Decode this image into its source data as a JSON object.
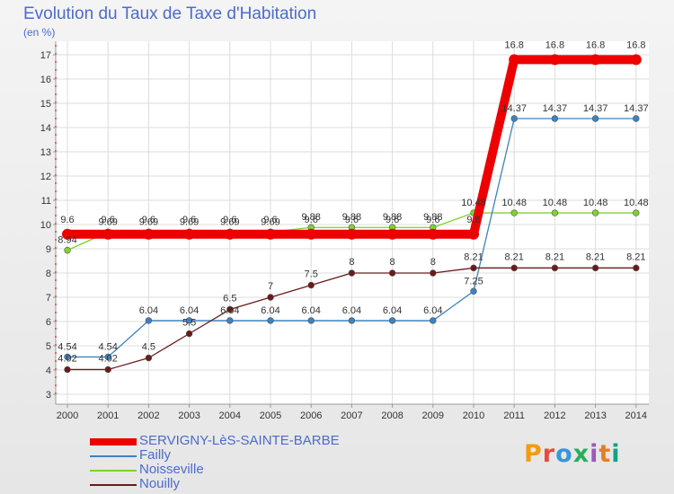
{
  "chart_data": {
    "type": "line",
    "title": "Evolution du Taux de Taxe d'Habitation",
    "unit_label": "(en %)",
    "xlabel": "",
    "ylabel": "",
    "ylim": [
      3,
      17
    ],
    "yticks": [
      3,
      4,
      5,
      6,
      7,
      8,
      9,
      10,
      11,
      12,
      13,
      14,
      15,
      16,
      17
    ],
    "x": [
      2000,
      2001,
      2002,
      2003,
      2004,
      2005,
      2006,
      2007,
      2008,
      2009,
      2010,
      2011,
      2012,
      2013,
      2014
    ],
    "grid": true,
    "legend_position": "bottom-left",
    "series": [
      {
        "name": "SERVIGNY-LèS-SAINTE-BARBE",
        "color": "#ee0000",
        "thick": true,
        "values": [
          9.6,
          9.6,
          9.6,
          9.6,
          9.6,
          9.6,
          9.6,
          9.6,
          9.6,
          9.6,
          9.6,
          16.8,
          16.8,
          16.8,
          16.8
        ],
        "labels": [
          "9.6",
          "9.6",
          "9.6",
          "9.6",
          "9.6",
          "9.6",
          "9.6",
          "9.6",
          "9.6",
          "9.6",
          "9.6",
          "16.8",
          "16.8",
          "16.8",
          "16.8"
        ]
      },
      {
        "name": "Failly",
        "color": "#3b82c4",
        "thick": false,
        "values": [
          4.54,
          4.54,
          6.04,
          6.04,
          6.04,
          6.04,
          6.04,
          6.04,
          6.04,
          6.04,
          7.25,
          14.37,
          14.37,
          14.37,
          14.37
        ],
        "labels": [
          "4.54",
          "4.54",
          "6.04",
          "6.04",
          "6.04",
          "6.04",
          "6.04",
          "6.04",
          "6.04",
          "6.04",
          "7.25",
          "14.37",
          "14.37",
          "14.37",
          "14.37"
        ]
      },
      {
        "name": "Noisseville",
        "color": "#7ed32a",
        "thick": false,
        "values": [
          8.94,
          9.69,
          9.69,
          9.69,
          9.69,
          9.69,
          9.88,
          9.88,
          9.88,
          9.88,
          10.48,
          10.48,
          10.48,
          10.48,
          10.48
        ],
        "labels": [
          "8.94",
          "9.69",
          "9.69",
          "9.69",
          "9.69",
          "9.69",
          "9.88",
          "9.88",
          "9.88",
          "9.88",
          "10.48",
          "10.48",
          "10.48",
          "10.48",
          "10.48"
        ]
      },
      {
        "name": "Nouilly",
        "color": "#6b1a1a",
        "thick": false,
        "values": [
          4.02,
          4.02,
          4.5,
          5.5,
          6.5,
          7,
          7.5,
          8,
          8,
          8,
          8.21,
          8.21,
          8.21,
          8.21,
          8.21
        ],
        "labels": [
          "4.02",
          "4.02",
          "4.5",
          "5.5",
          "6.5",
          "7",
          "7.5",
          "8",
          "8",
          "8",
          "8.21",
          "8.21",
          "8.21",
          "8.21",
          "8.21"
        ]
      }
    ]
  },
  "logo": {
    "text": "Proxiti",
    "colors": [
      "#f39c12",
      "#e74c3c",
      "#3498db",
      "#27ae60",
      "#9b59b6",
      "#e67e22",
      "#16a085"
    ]
  }
}
